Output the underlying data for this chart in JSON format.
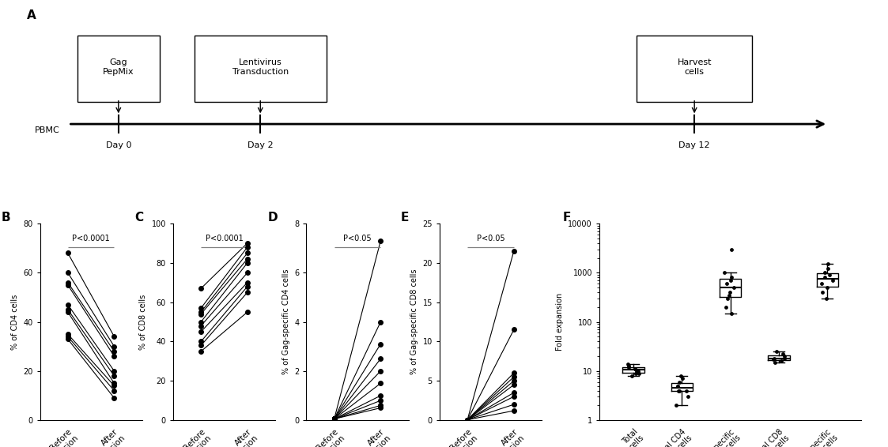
{
  "panel_B_before": [
    68,
    60,
    56,
    55,
    47,
    45,
    44,
    35,
    34,
    33
  ],
  "panel_B_after": [
    34,
    30,
    28,
    26,
    20,
    18,
    15,
    14,
    12,
    9
  ],
  "panel_C_before": [
    67,
    57,
    55,
    54,
    50,
    48,
    45,
    40,
    38,
    35
  ],
  "panel_C_after": [
    90,
    88,
    85,
    82,
    80,
    75,
    70,
    68,
    65,
    55
  ],
  "panel_D_before": [
    0.05,
    0.05,
    0.05,
    0.05,
    0.05,
    0.05,
    0.05,
    0.05,
    0.05,
    0.05
  ],
  "panel_D_after": [
    7.3,
    4.0,
    3.1,
    2.5,
    2.0,
    1.5,
    1.0,
    0.8,
    0.6,
    0.5
  ],
  "panel_E_before": [
    0.05,
    0.05,
    0.05,
    0.05,
    0.05,
    0.05,
    0.05,
    0.05,
    0.05,
    0.05
  ],
  "panel_E_after": [
    21.5,
    11.5,
    6.0,
    5.5,
    5.0,
    4.5,
    3.5,
    3.0,
    2.0,
    1.2
  ],
  "panel_F_data": {
    "Total cells": [
      8,
      9,
      10,
      11,
      12,
      13,
      14,
      10,
      11,
      9
    ],
    "Total CD4 cells": [
      2,
      3,
      4,
      4,
      5,
      5,
      6,
      7,
      8,
      4
    ],
    "Gag-specific CD4 cells": [
      150,
      200,
      300,
      350,
      400,
      500,
      600,
      700,
      800,
      1000,
      3000
    ],
    "Total CD8 cells": [
      15,
      17,
      18,
      20,
      22,
      25,
      18,
      16
    ],
    "Gag-specific CD8 cells": [
      300,
      400,
      500,
      600,
      700,
      800,
      900,
      1000,
      1200,
      1500
    ]
  },
  "bg_color": "#ffffff",
  "line_color": "#000000",
  "dot_color": "#000000"
}
